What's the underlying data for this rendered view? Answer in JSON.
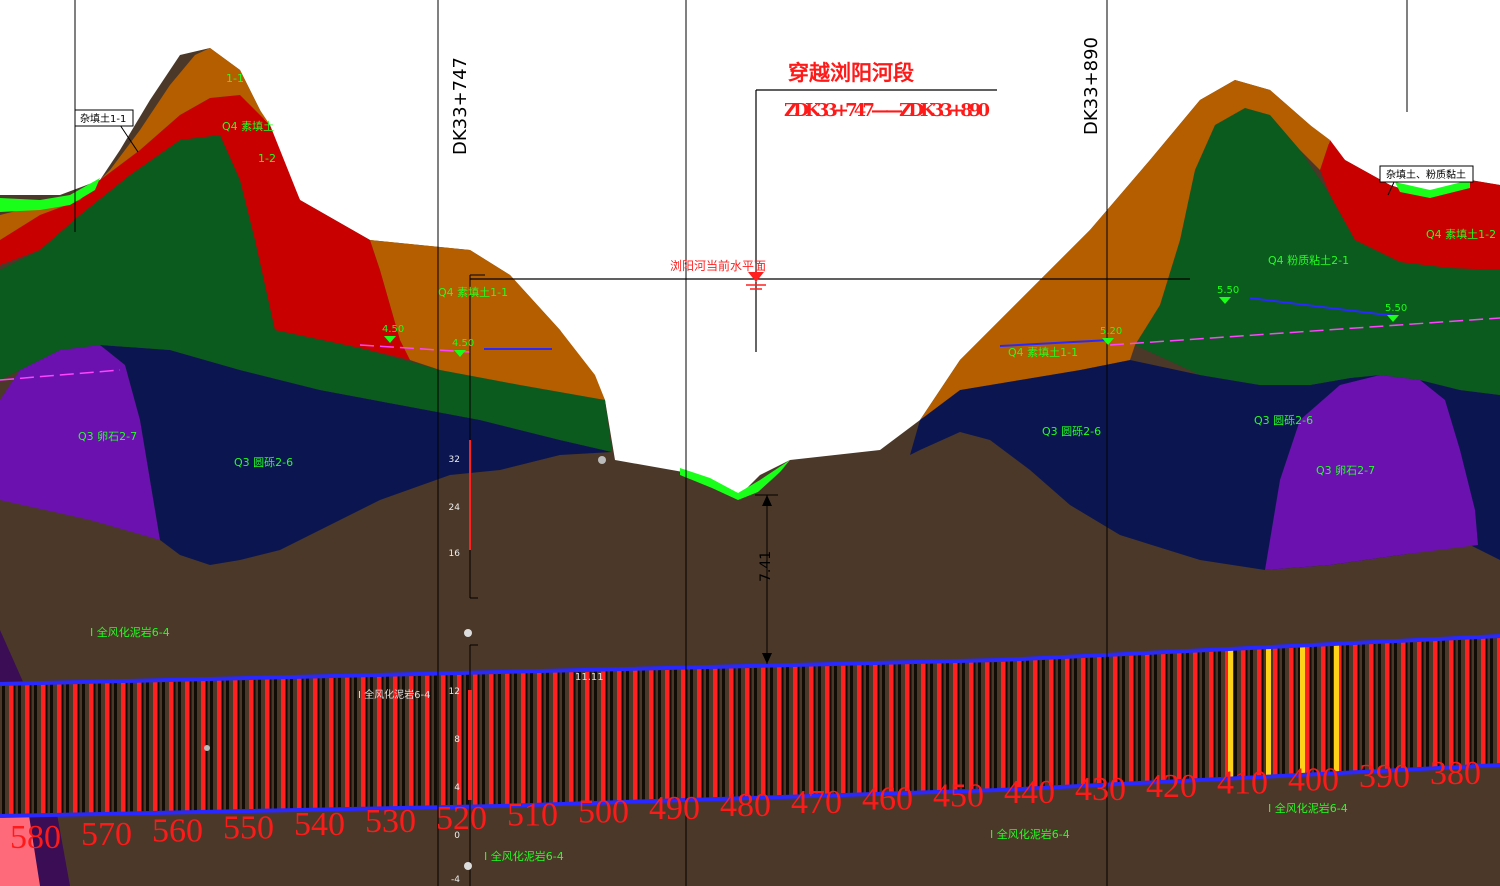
{
  "title": "穿越浏阳河段",
  "range": "ZDK33+747——ZDK33+890",
  "water_level_label": "浏阳河当前水平面",
  "station_left": "DK33+747",
  "station_right": "DK33+890",
  "depth_dimension": "7.41",
  "colors": {
    "fill_soil": "#b55e00",
    "clay": "#c80000",
    "silty_sand": "#0b5a1e",
    "gravel": "#0b1650",
    "boulder": "#6a11b0",
    "bedrock": "#4b3828",
    "surface": "#1aff1a",
    "tunnel": "#2828ff",
    "segment_red": "#ff2020",
    "segment_gold": "#ffd21a"
  },
  "chainage_marks": [
    "580",
    "570",
    "560",
    "550",
    "540",
    "530",
    "520",
    "510",
    "500",
    "490",
    "480",
    "470",
    "460",
    "450",
    "440",
    "430",
    "420",
    "410",
    "400",
    "390",
    "380"
  ],
  "water_levels": [
    {
      "id": "wl-1",
      "value": "4.50"
    },
    {
      "id": "wl-2",
      "value": "4.50"
    },
    {
      "id": "wl-3",
      "value": "5.20"
    },
    {
      "id": "wl-4",
      "value": "5.50"
    },
    {
      "id": "wl-5",
      "value": "5.50"
    }
  ],
  "layer_labels": [
    {
      "id": "top-left",
      "text": "1-1"
    },
    {
      "id": "clay-left",
      "text": "Q4 素填土"
    },
    {
      "id": "clay-left-2",
      "text": "1-2"
    },
    {
      "id": "fill-mid",
      "text": "Q4 素填土1-1"
    },
    {
      "id": "boulder-left",
      "text": "Q3 卵石2-7"
    },
    {
      "id": "gravel-left",
      "text": "Q3 圆砾2-6"
    },
    {
      "id": "fill-right",
      "text": "Q4 素填土1-1"
    },
    {
      "id": "gravel-mid-right",
      "text": "Q3 圆砾2-6"
    },
    {
      "id": "silt-right",
      "text": "Q4 粉质粘土2-1"
    },
    {
      "id": "clay-right",
      "text": "Q4 素填土1-2"
    },
    {
      "id": "gravel-right",
      "text": "Q3 圆砾2-6"
    },
    {
      "id": "boulder-right",
      "text": "Q3 卵石2-7"
    },
    {
      "id": "weathered-left",
      "text": "Ⅰ 全风化泥岩6-4"
    },
    {
      "id": "weathered-tunnel",
      "text": "Ⅰ 全风化泥岩6-4"
    },
    {
      "id": "weathered-bottom-mid",
      "text": "Ⅰ 全风化泥岩6-4"
    },
    {
      "id": "weathered-bottom-right",
      "text": "Ⅰ 全风化泥岩6-4"
    },
    {
      "id": "weathered-right",
      "text": "Ⅰ 全风化泥岩6-4"
    }
  ],
  "callouts": [
    {
      "id": "callout-left",
      "text": "杂填土1-1"
    },
    {
      "id": "callout-right",
      "text": "杂填土、粉质黏土"
    }
  ],
  "scale_ticks": [
    "32",
    "24",
    "16",
    "12",
    "8",
    "4",
    "0",
    "-4"
  ],
  "tunnel_crown_label": "11.11"
}
